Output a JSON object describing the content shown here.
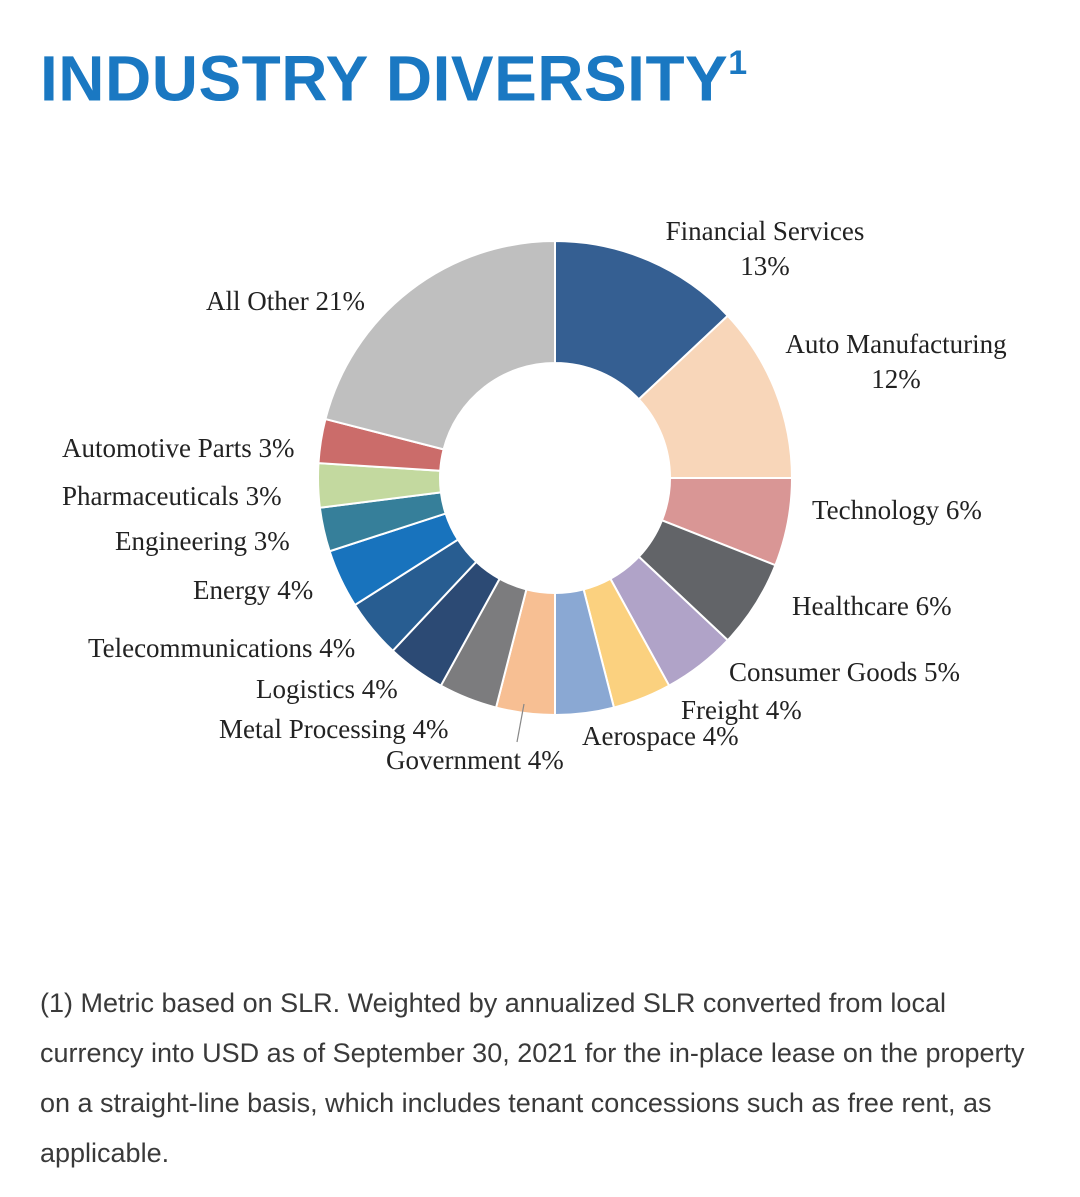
{
  "title": {
    "main": "INDUSTRY DIVERSITY",
    "superscript": "1"
  },
  "chart_data": {
    "type": "pie",
    "title": "INDUSTRY DIVERSITY",
    "donut": true,
    "slices": [
      {
        "label": "Financial Services 13%",
        "lines": [
          "Financial Services",
          "13%"
        ],
        "value": 13,
        "color": "#355f92"
      },
      {
        "label": "Auto Manufacturing 12%",
        "lines": [
          "Auto Manufacturing",
          "12%"
        ],
        "value": 12,
        "color": "#f8d6b9"
      },
      {
        "label": "Technology 6%",
        "lines": [
          "Technology 6%"
        ],
        "value": 6,
        "color": "#d99695"
      },
      {
        "label": "Healthcare 6%",
        "lines": [
          "Healthcare 6%"
        ],
        "value": 6,
        "color": "#626468"
      },
      {
        "label": "Consumer Goods 5%",
        "lines": [
          "Consumer Goods 5%"
        ],
        "value": 5,
        "color": "#b0a3c8"
      },
      {
        "label": "Freight 4%",
        "lines": [
          "Freight 4%"
        ],
        "value": 4,
        "color": "#fbd17f"
      },
      {
        "label": "Aerospace 4%",
        "lines": [
          "Aerospace 4%"
        ],
        "value": 4,
        "color": "#8aa8d3"
      },
      {
        "label": "Government 4%",
        "lines": [
          "Government 4%"
        ],
        "value": 4,
        "color": "#f7bf93"
      },
      {
        "label": "Metal Processing 4%",
        "lines": [
          "Metal Processing 4%"
        ],
        "value": 4,
        "color": "#7c7c7e"
      },
      {
        "label": "Logistics 4%",
        "lines": [
          "Logistics 4%"
        ],
        "value": 4,
        "color": "#2c4a74"
      },
      {
        "label": "Telecommunications 4%",
        "lines": [
          "Telecommunications 4%"
        ],
        "value": 4,
        "color": "#285d91"
      },
      {
        "label": "Energy 4%",
        "lines": [
          "Energy 4%"
        ],
        "value": 4,
        "color": "#1873bd"
      },
      {
        "label": "Engineering 3%",
        "lines": [
          "Engineering 3%"
        ],
        "value": 3,
        "color": "#367f9a"
      },
      {
        "label": "Pharmaceuticals 3%",
        "lines": [
          "Pharmaceuticals 3%"
        ],
        "value": 3,
        "color": "#c3d99f"
      },
      {
        "label": "Automotive Parts 3%",
        "lines": [
          "Automotive Parts 3%"
        ],
        "value": 3,
        "color": "#cb6c6a"
      },
      {
        "label": "All Other 21%",
        "lines": [
          "All Other 21%"
        ],
        "value": 21,
        "color": "#bfbfbf"
      }
    ]
  },
  "footnote": "(1) Metric based on SLR. Weighted by annualized SLR converted from local currency into USD as of September 30, 2021 for the in-place lease on the property on a straight-line basis, which includes tenant concessions such as free rent, as applicable."
}
